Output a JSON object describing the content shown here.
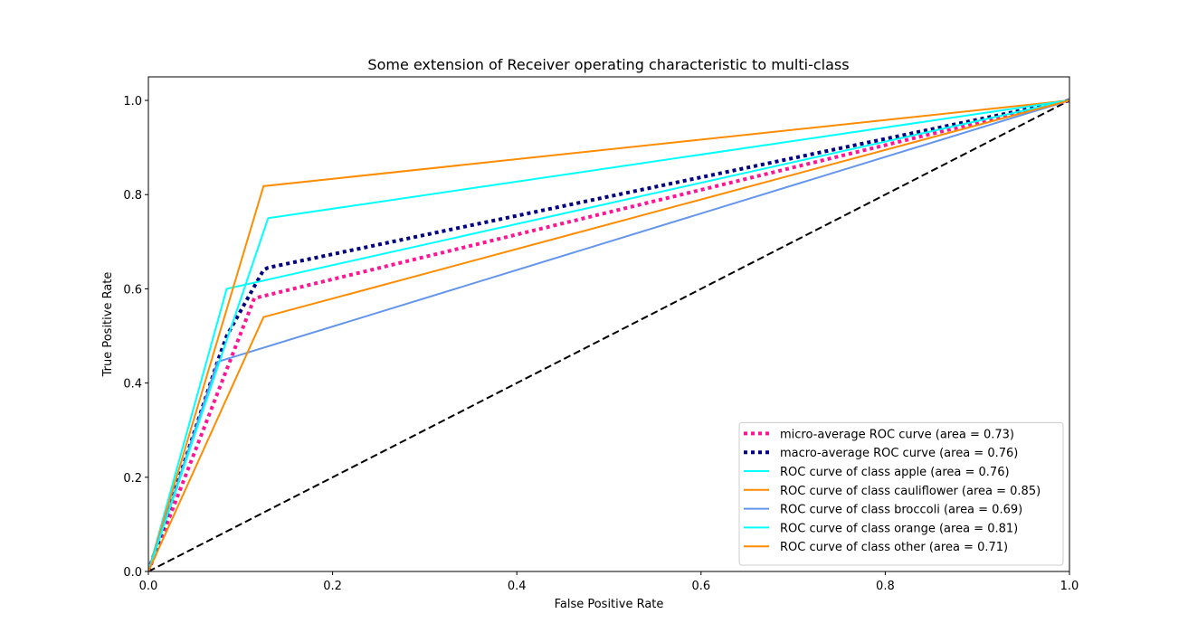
{
  "chart_data": {
    "type": "line",
    "title": "Some extension of Receiver operating characteristic to multi-class",
    "xlabel": "False Positive Rate",
    "ylabel": "True Positive Rate",
    "xlim": [
      0.0,
      1.0
    ],
    "ylim": [
      0.0,
      1.05
    ],
    "xticks": [
      0.0,
      0.2,
      0.4,
      0.6,
      0.8,
      1.0
    ],
    "yticks": [
      0.0,
      0.2,
      0.4,
      0.6,
      0.8,
      1.0
    ],
    "xtick_labels": [
      "0.0",
      "0.2",
      "0.4",
      "0.6",
      "0.8",
      "1.0"
    ],
    "ytick_labels": [
      "0.0",
      "0.2",
      "0.4",
      "0.6",
      "0.8",
      "1.0"
    ],
    "grid": false,
    "legend_position": "lower-right",
    "series": [
      {
        "name": "micro-average ROC curve (area = 0.73)",
        "color": "#ff1493",
        "style": "dotted",
        "width": 4,
        "x": [
          0.0,
          0.115,
          1.0
        ],
        "y": [
          0.0,
          0.58,
          1.0
        ]
      },
      {
        "name": "macro-average ROC curve (area = 0.76)",
        "color": "#000080",
        "style": "dotted",
        "width": 4,
        "x": [
          0.0,
          0.075,
          0.085,
          0.125,
          0.13,
          1.0
        ],
        "y": [
          0.0,
          0.445,
          0.5,
          0.64,
          0.645,
          1.0
        ]
      },
      {
        "name": "ROC curve of class apple (area = 0.76)",
        "color": "#00ffff",
        "style": "solid",
        "width": 2,
        "x": [
          0.0,
          0.085,
          1.0
        ],
        "y": [
          0.0,
          0.6,
          1.0
        ]
      },
      {
        "name": "ROC curve of class cauliflower (area = 0.85)",
        "color": "#ff8c00",
        "style": "solid",
        "width": 2,
        "x": [
          0.0,
          0.125,
          1.0
        ],
        "y": [
          0.0,
          0.818,
          1.0
        ]
      },
      {
        "name": "ROC curve of class broccoli (area = 0.69)",
        "color": "#6495ed",
        "style": "solid",
        "width": 2,
        "x": [
          0.0,
          0.075,
          1.0
        ],
        "y": [
          0.0,
          0.445,
          1.0
        ]
      },
      {
        "name": "ROC curve of class orange (area = 0.81)",
        "color": "#00ffff",
        "style": "solid",
        "width": 2,
        "x": [
          0.0,
          0.13,
          1.0
        ],
        "y": [
          0.0,
          0.75,
          1.0
        ]
      },
      {
        "name": "ROC curve of class other (area = 0.71)",
        "color": "#ff8c00",
        "style": "solid",
        "width": 2,
        "x": [
          0.0,
          0.125,
          1.0
        ],
        "y": [
          0.0,
          0.54,
          1.0
        ]
      },
      {
        "color": "#000000",
        "style": "dashed",
        "width": 2,
        "x": [
          0.0,
          1.0
        ],
        "y": [
          0.0,
          1.0
        ]
      }
    ]
  }
}
